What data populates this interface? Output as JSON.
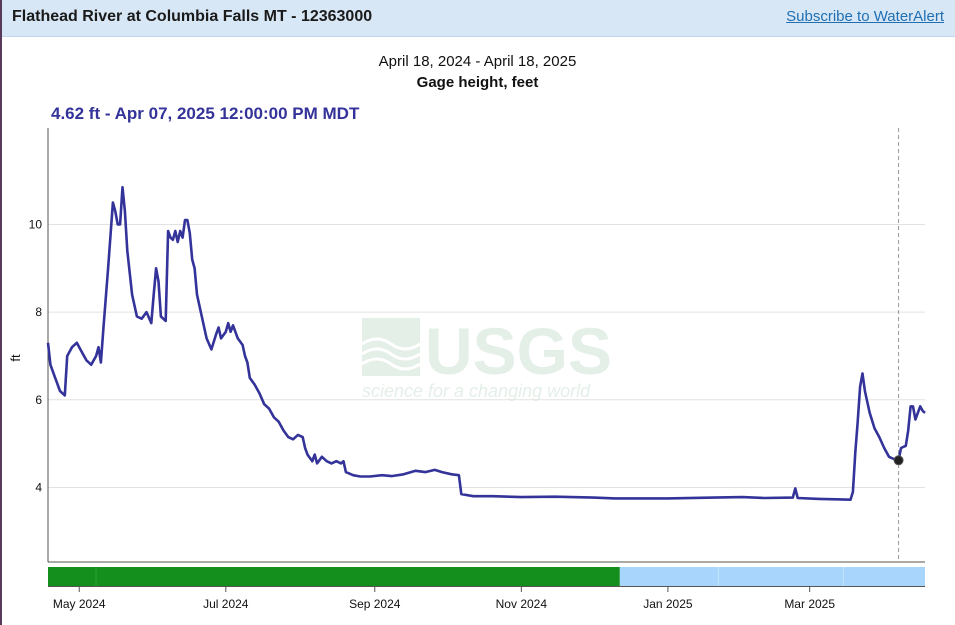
{
  "header": {
    "title": "Flathead River at Columbia Falls MT - 12363000",
    "subscribe_link": "Subscribe to WaterAlert"
  },
  "graph": {
    "date_range": "April 18, 2024 - April 18, 2025",
    "parameter": "Gage height, feet",
    "tooltip": "4.62 ft - Apr 07, 2025 12:00:00 PM MDT"
  },
  "watermark": {
    "logo_text": "USGS",
    "tagline": "science for a changing world"
  },
  "colors": {
    "series_line": "#33339a",
    "approved_bar": "#148f1e",
    "provisional_bar": "#a7d5fb",
    "gridline": "#e2e2e2",
    "watermark": "#e4efe8"
  },
  "chart_data": {
    "type": "line",
    "title": "Gage height, feet",
    "xlabel": "",
    "ylabel": "ft",
    "x_range": [
      "2024-04-18",
      "2025-04-18"
    ],
    "ylim": [
      2.3,
      12.2
    ],
    "y_ticks": [
      4,
      6,
      8,
      10
    ],
    "y_tick_labels": [
      "4",
      "6",
      "8",
      "10"
    ],
    "x_ticks": [
      "2024-05-01",
      "2024-07-01",
      "2024-09-01",
      "2024-11-01",
      "2025-01-01",
      "2025-03-01"
    ],
    "x_tick_labels": [
      "May 2024",
      "Jul 2024",
      "Sep 2024",
      "Nov 2024",
      "Jan 2025",
      "Mar 2025"
    ],
    "grid": true,
    "series": [
      {
        "points": [
          [
            "2024-04-18",
            7.3
          ],
          [
            "2024-04-19",
            6.8
          ],
          [
            "2024-04-21",
            6.5
          ],
          [
            "2024-04-23",
            6.2
          ],
          [
            "2024-04-25",
            6.1
          ],
          [
            "2024-04-26",
            7.0
          ],
          [
            "2024-04-28",
            7.2
          ],
          [
            "2024-04-30",
            7.3
          ],
          [
            "2024-05-02",
            7.1
          ],
          [
            "2024-05-04",
            6.9
          ],
          [
            "2024-05-06",
            6.8
          ],
          [
            "2024-05-08",
            7.0
          ],
          [
            "2024-05-09",
            7.2
          ],
          [
            "2024-05-10",
            6.85
          ],
          [
            "2024-05-11",
            7.6
          ],
          [
            "2024-05-13",
            9.0
          ],
          [
            "2024-05-15",
            10.5
          ],
          [
            "2024-05-16",
            10.3
          ],
          [
            "2024-05-17",
            10.0
          ],
          [
            "2024-05-18",
            10.0
          ],
          [
            "2024-05-19",
            10.85
          ],
          [
            "2024-05-20",
            10.3
          ],
          [
            "2024-05-21",
            9.4
          ],
          [
            "2024-05-23",
            8.4
          ],
          [
            "2024-05-25",
            7.9
          ],
          [
            "2024-05-27",
            7.85
          ],
          [
            "2024-05-29",
            8.0
          ],
          [
            "2024-05-31",
            7.75
          ],
          [
            "2024-06-01",
            8.4
          ],
          [
            "2024-06-02",
            9.0
          ],
          [
            "2024-06-03",
            8.7
          ],
          [
            "2024-06-04",
            7.9
          ],
          [
            "2024-06-06",
            7.8
          ],
          [
            "2024-06-07",
            9.85
          ],
          [
            "2024-06-08",
            9.7
          ],
          [
            "2024-06-09",
            9.65
          ],
          [
            "2024-06-10",
            9.85
          ],
          [
            "2024-06-11",
            9.6
          ],
          [
            "2024-06-12",
            9.85
          ],
          [
            "2024-06-13",
            9.7
          ],
          [
            "2024-06-14",
            10.1
          ],
          [
            "2024-06-15",
            10.1
          ],
          [
            "2024-06-16",
            9.8
          ],
          [
            "2024-06-17",
            9.2
          ],
          [
            "2024-06-18",
            9.0
          ],
          [
            "2024-06-19",
            8.4
          ],
          [
            "2024-06-21",
            7.9
          ],
          [
            "2024-06-23",
            7.4
          ],
          [
            "2024-06-25",
            7.15
          ],
          [
            "2024-06-27",
            7.5
          ],
          [
            "2024-06-28",
            7.65
          ],
          [
            "2024-06-29",
            7.4
          ],
          [
            "2024-07-01",
            7.55
          ],
          [
            "2024-07-02",
            7.75
          ],
          [
            "2024-07-03",
            7.55
          ],
          [
            "2024-07-04",
            7.7
          ],
          [
            "2024-07-06",
            7.4
          ],
          [
            "2024-07-08",
            7.25
          ],
          [
            "2024-07-09",
            7.0
          ],
          [
            "2024-07-10",
            6.85
          ],
          [
            "2024-07-11",
            6.5
          ],
          [
            "2024-07-13",
            6.35
          ],
          [
            "2024-07-15",
            6.15
          ],
          [
            "2024-07-17",
            5.9
          ],
          [
            "2024-07-19",
            5.8
          ],
          [
            "2024-07-21",
            5.6
          ],
          [
            "2024-07-23",
            5.5
          ],
          [
            "2024-07-25",
            5.3
          ],
          [
            "2024-07-27",
            5.15
          ],
          [
            "2024-07-29",
            5.1
          ],
          [
            "2024-07-31",
            5.2
          ],
          [
            "2024-08-02",
            5.15
          ],
          [
            "2024-08-03",
            4.9
          ],
          [
            "2024-08-04",
            4.75
          ],
          [
            "2024-08-06",
            4.6
          ],
          [
            "2024-08-07",
            4.75
          ],
          [
            "2024-08-08",
            4.55
          ],
          [
            "2024-08-10",
            4.7
          ],
          [
            "2024-08-12",
            4.6
          ],
          [
            "2024-08-14",
            4.55
          ],
          [
            "2024-08-16",
            4.6
          ],
          [
            "2024-08-18",
            4.55
          ],
          [
            "2024-08-19",
            4.6
          ],
          [
            "2024-08-20",
            4.35
          ],
          [
            "2024-08-23",
            4.28
          ],
          [
            "2024-08-26",
            4.25
          ],
          [
            "2024-08-30",
            4.25
          ],
          [
            "2024-09-04",
            4.28
          ],
          [
            "2024-09-08",
            4.26
          ],
          [
            "2024-09-13",
            4.3
          ],
          [
            "2024-09-18",
            4.38
          ],
          [
            "2024-09-22",
            4.35
          ],
          [
            "2024-09-26",
            4.4
          ],
          [
            "2024-09-29",
            4.35
          ],
          [
            "2024-10-03",
            4.3
          ],
          [
            "2024-10-06",
            4.28
          ],
          [
            "2024-10-07",
            3.85
          ],
          [
            "2024-10-12",
            3.8
          ],
          [
            "2024-10-20",
            3.8
          ],
          [
            "2024-11-01",
            3.78
          ],
          [
            "2024-11-15",
            3.79
          ],
          [
            "2024-12-01",
            3.77
          ],
          [
            "2024-12-10",
            3.75
          ],
          [
            "2025-01-01",
            3.75
          ],
          [
            "2025-01-20",
            3.77
          ],
          [
            "2025-02-01",
            3.78
          ],
          [
            "2025-02-10",
            3.76
          ],
          [
            "2025-02-22",
            3.77
          ],
          [
            "2025-02-23",
            3.98
          ],
          [
            "2025-02-24",
            3.76
          ],
          [
            "2025-03-05",
            3.74
          ],
          [
            "2025-03-12",
            3.73
          ],
          [
            "2025-03-18",
            3.72
          ],
          [
            "2025-03-19",
            3.9
          ],
          [
            "2025-03-20",
            4.8
          ],
          [
            "2025-03-21",
            5.5
          ],
          [
            "2025-03-22",
            6.3
          ],
          [
            "2025-03-23",
            6.6
          ],
          [
            "2025-03-24",
            6.2
          ],
          [
            "2025-03-26",
            5.7
          ],
          [
            "2025-03-28",
            5.35
          ],
          [
            "2025-03-30",
            5.15
          ],
          [
            "2025-04-01",
            4.9
          ],
          [
            "2025-04-03",
            4.7
          ],
          [
            "2025-04-05",
            4.65
          ],
          [
            "2025-04-07",
            4.62
          ],
          [
            "2025-04-08",
            4.9
          ],
          [
            "2025-04-10",
            4.95
          ],
          [
            "2025-04-11",
            5.3
          ],
          [
            "2025-04-12",
            5.85
          ],
          [
            "2025-04-13",
            5.85
          ],
          [
            "2025-04-14",
            5.55
          ],
          [
            "2025-04-15",
            5.7
          ],
          [
            "2025-04-16",
            5.85
          ],
          [
            "2025-04-17",
            5.75
          ],
          [
            "2025-04-18",
            5.7
          ]
        ]
      }
    ],
    "highlighted_point": {
      "x": "2025-04-07",
      "y": 4.62
    },
    "approval_bars": [
      {
        "start": "2024-04-18",
        "end": "2024-12-12",
        "status": "approved"
      },
      {
        "start": "2024-12-12",
        "end": "2025-04-18",
        "status": "provisional"
      }
    ]
  }
}
